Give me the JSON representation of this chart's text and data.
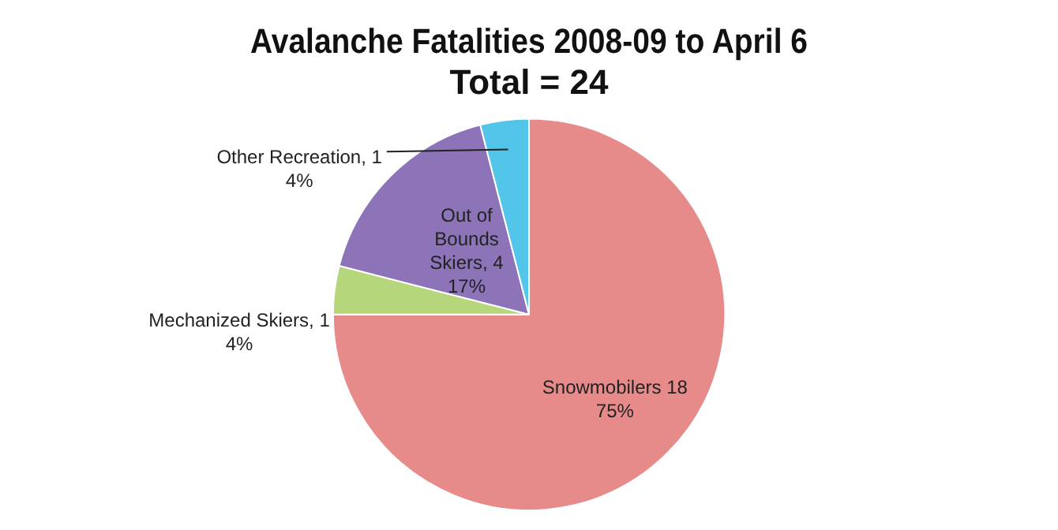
{
  "chart_data": {
    "type": "pie",
    "title": "Avalanche Fatalities 2008-09 to April 6",
    "subtitle": "Total = 24",
    "categories": [
      "Snowmobilers 18",
      "Mechanized Skiers, 1",
      "Out of Bounds Skiers, 4",
      "Other Recreation, 1"
    ],
    "values": [
      75,
      4,
      17,
      4
    ],
    "colors": [
      "#e68a8a",
      "#b5d67a",
      "#8d74b8",
      "#52c5e8"
    ],
    "value_labels": [
      "75%",
      "4%",
      "17%",
      "4%"
    ],
    "legend": false
  }
}
